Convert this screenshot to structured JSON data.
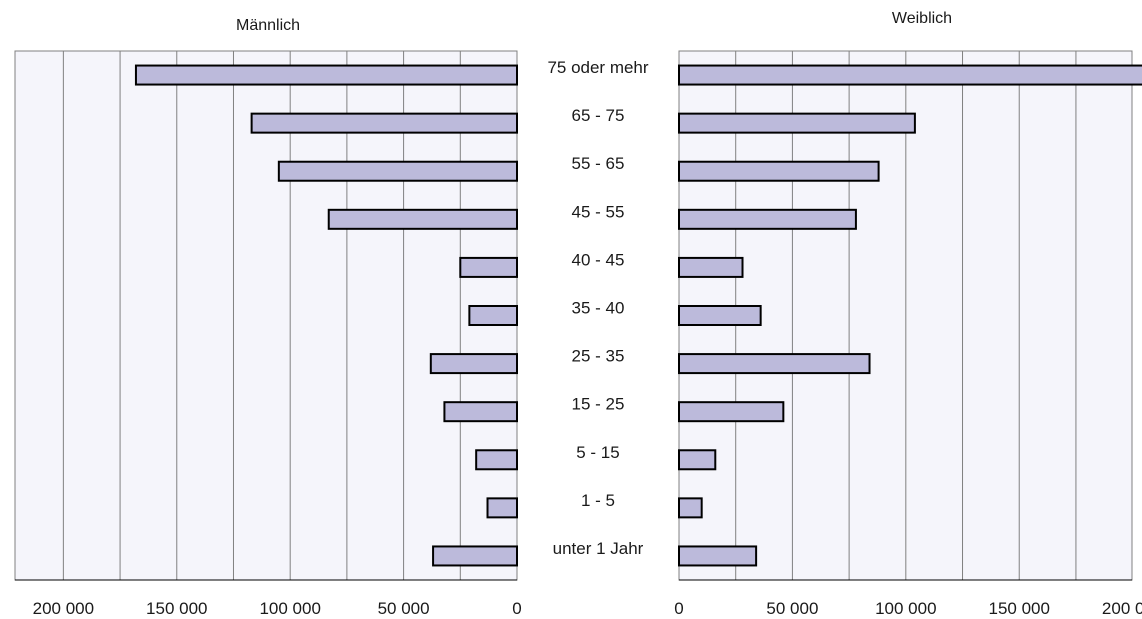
{
  "chart_data": {
    "type": "bar",
    "orientation": "horizontal",
    "layout": "population-pyramid",
    "categories": [
      "75 oder mehr",
      "65 - 75",
      "55 - 65",
      "45 - 55",
      "40 - 45",
      "35 - 40",
      "25 - 35",
      "15 - 25",
      "5 - 15",
      "1 - 5",
      "unter 1 Jahr"
    ],
    "series": [
      {
        "name": "Männlich",
        "values": [
          168000,
          117000,
          105000,
          83000,
          25000,
          21000,
          38000,
          32000,
          18000,
          13000,
          37000
        ]
      },
      {
        "name": "Weiblich",
        "values": [
          216000,
          104000,
          88000,
          78000,
          28000,
          36000,
          84000,
          46000,
          16000,
          10000,
          34000
        ]
      }
    ],
    "xlim": [
      0,
      220000
    ],
    "ticks": [
      0,
      50000,
      100000,
      150000,
      200000
    ],
    "tick_labels": [
      "0",
      "50 000",
      "100 000",
      "150 000",
      "200 000"
    ],
    "grid": true,
    "colors": {
      "bar_fill": "#bcbadb",
      "bar_stroke": "#000000",
      "plot_bg": "#f5f5fb",
      "grid": "#808080"
    }
  }
}
